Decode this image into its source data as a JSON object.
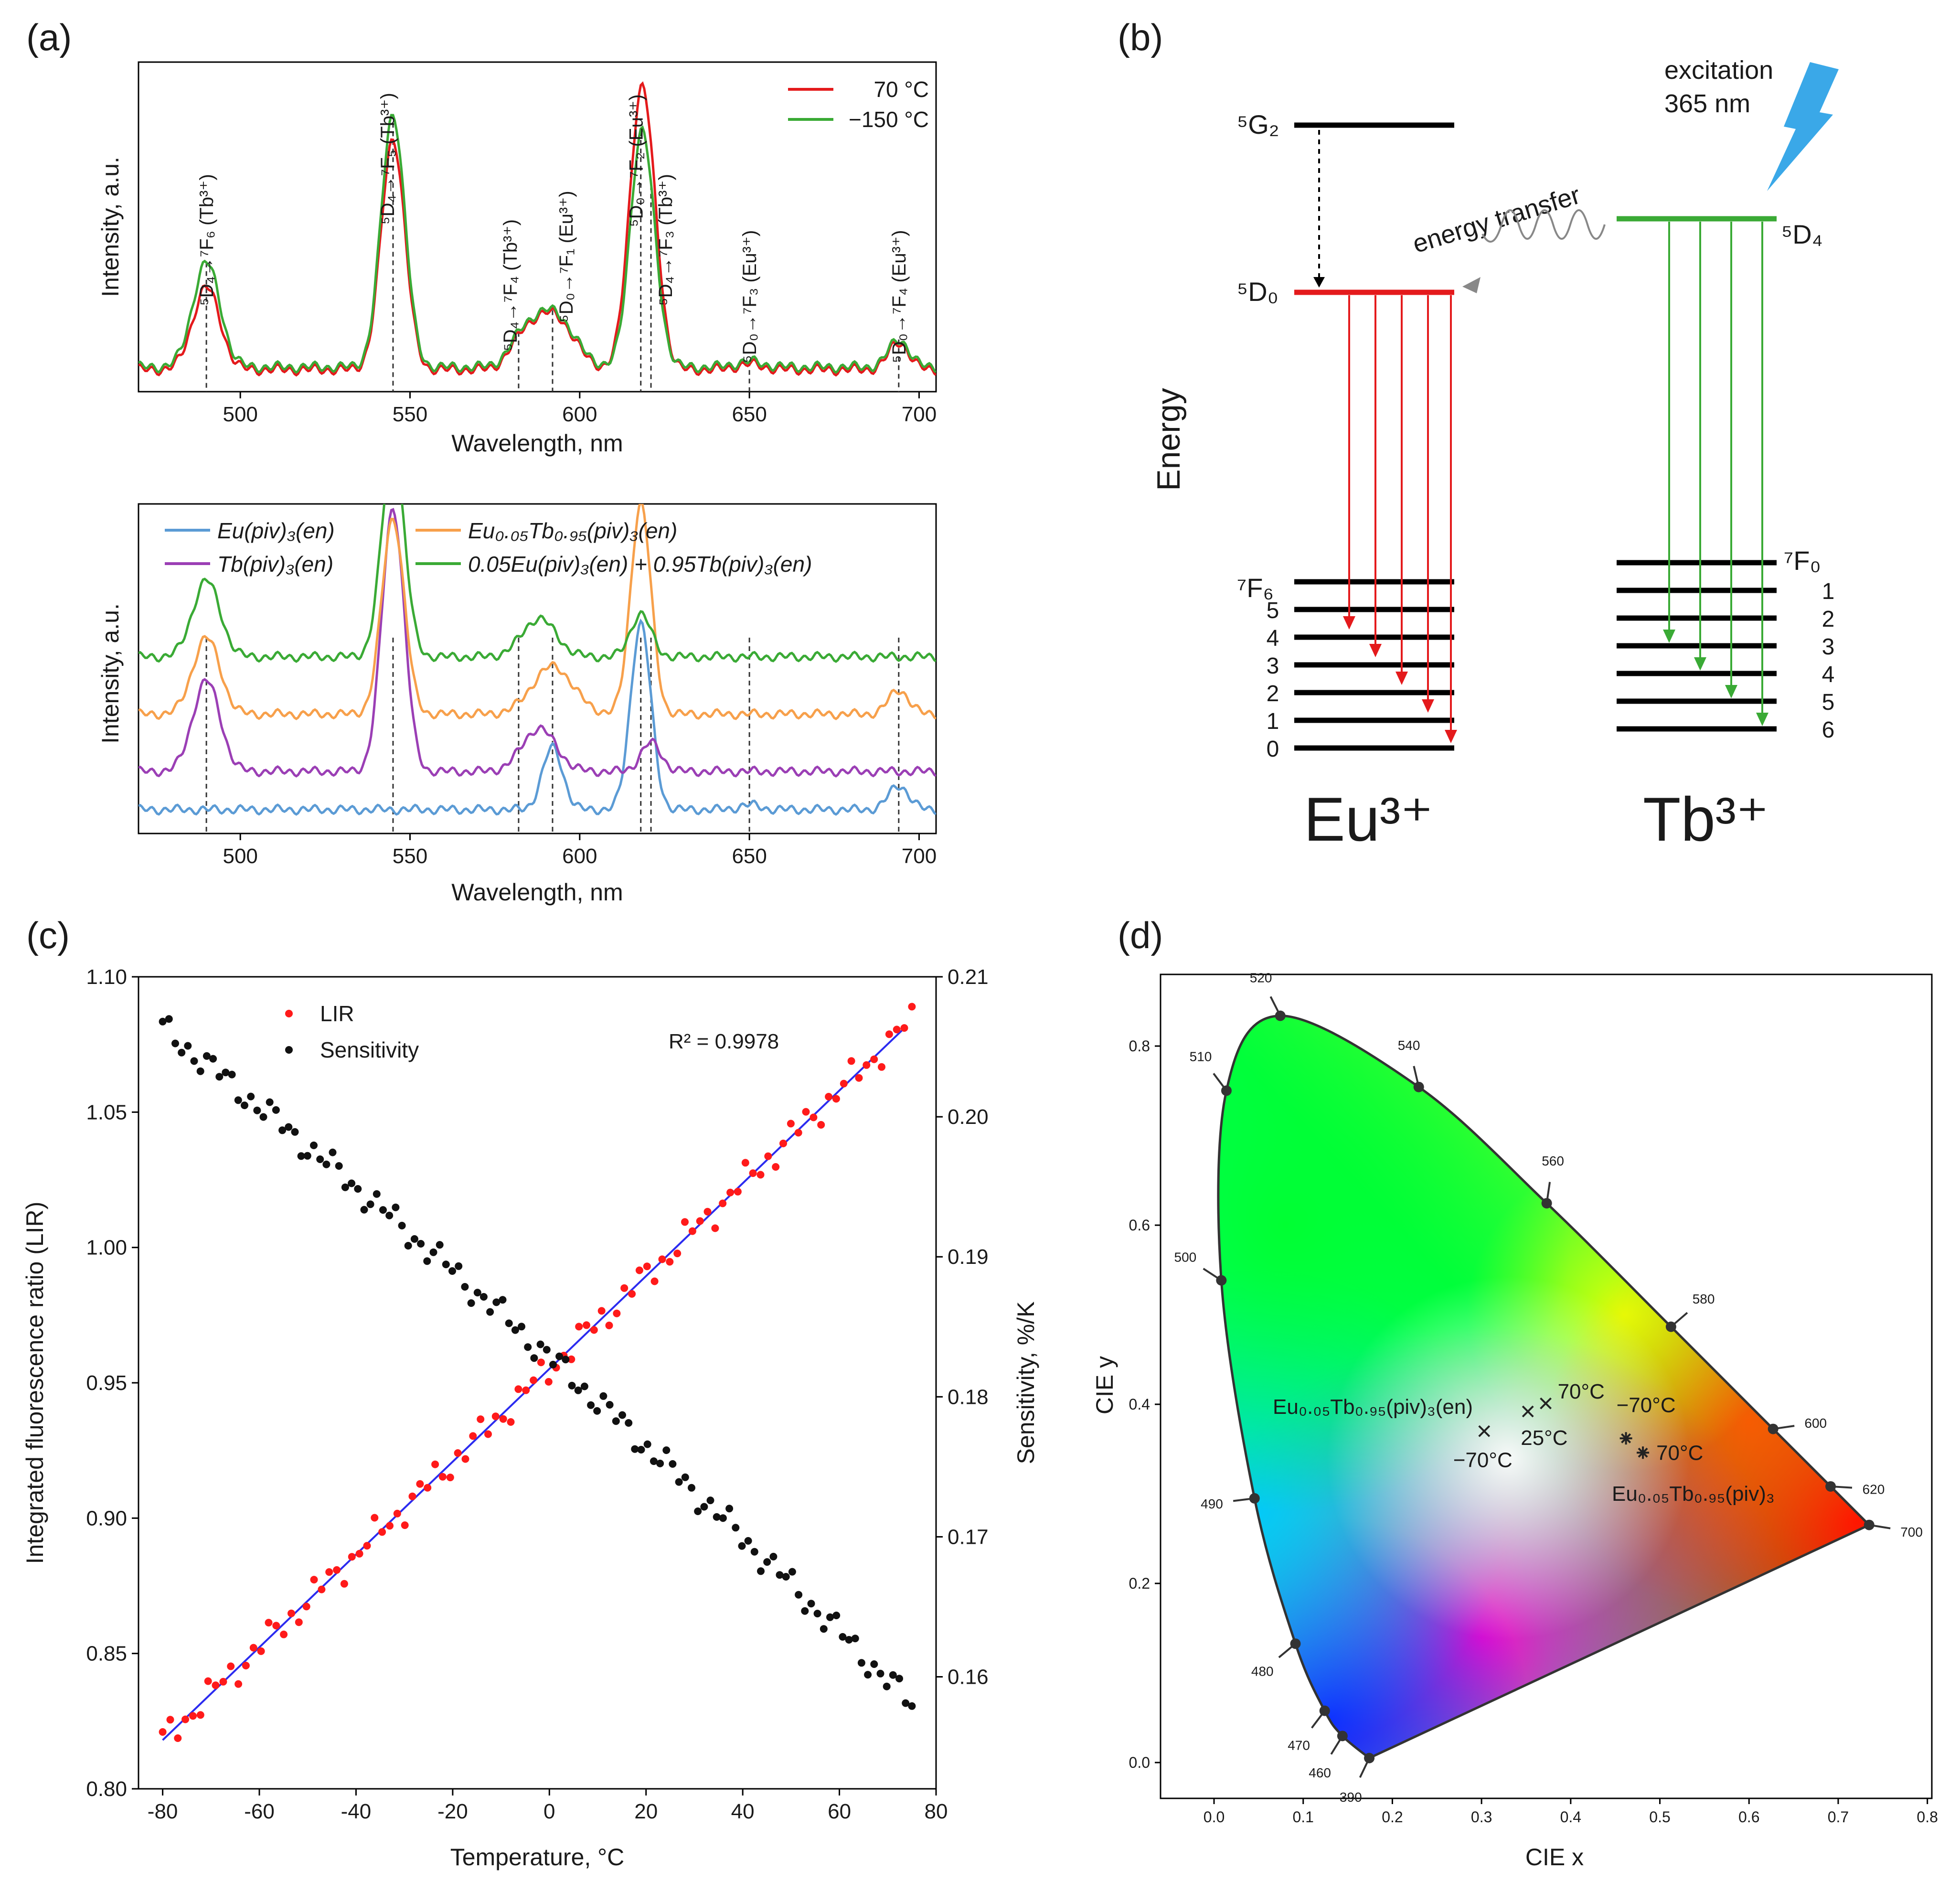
{
  "colors": {
    "red": "#e41a1c",
    "green": "#3aaa35",
    "blue": "#5b9bd5",
    "orange": "#f7a04b",
    "purple": "#9b3fb5",
    "lir_red": "#ff1a1a",
    "fit_blue": "#2b2bf0",
    "black": "#111111",
    "lightning": "#3aa8e8"
  },
  "panels": {
    "a_label": "(a)",
    "b_label": "(b)",
    "c_label": "(c)",
    "d_label": "(d)"
  },
  "chart_data": [
    {
      "id": "a-top",
      "type": "line",
      "xlabel": "Wavelength, nm",
      "ylabel": "Intensity, a.u.",
      "xlim": [
        470,
        705
      ],
      "ylim": [
        0,
        1.0
      ],
      "xticks": [
        500,
        550,
        600,
        650,
        700
      ],
      "legend": {
        "position": "top-right",
        "entries": [
          "70 °C",
          "−150 °C"
        ]
      },
      "series": [
        {
          "name": "70 °C",
          "color_key": "red",
          "peaks": [
            {
              "x": 490,
              "h": 0.15,
              "w": 4.0
            },
            {
              "x": 545,
              "h": 0.42,
              "w": 3.5
            },
            {
              "x": 583,
              "h": 0.04,
              "w": 4
            },
            {
              "x": 592,
              "h": 0.1,
              "w": 6
            },
            {
              "x": 618,
              "h": 0.48,
              "w": 3.5
            },
            {
              "x": 622,
              "h": 0.08,
              "w": 3
            },
            {
              "x": 650,
              "h": 0.01,
              "w": 4
            },
            {
              "x": 694,
              "h": 0.05,
              "w": 3
            }
          ],
          "baseline": 0.04
        },
        {
          "name": "−150 °C",
          "color_key": "green",
          "peaks": [
            {
              "x": 490,
              "h": 0.19,
              "w": 4.0
            },
            {
              "x": 545,
              "h": 0.46,
              "w": 3.5
            },
            {
              "x": 583,
              "h": 0.04,
              "w": 4
            },
            {
              "x": 592,
              "h": 0.1,
              "w": 6
            },
            {
              "x": 618,
              "h": 0.4,
              "w": 3.3
            },
            {
              "x": 622,
              "h": 0.07,
              "w": 3
            },
            {
              "x": 650,
              "h": 0.01,
              "w": 4
            },
            {
              "x": 694,
              "h": 0.05,
              "w": 3
            }
          ],
          "baseline": 0.045
        }
      ],
      "transitions": [
        {
          "x": 490,
          "label": "⁵D₄→⁷F₆ (Tb³⁺)"
        },
        {
          "x": 545,
          "label": "⁵D₄→⁷F₅ (Tb³⁺)"
        },
        {
          "x": 582,
          "label": "⁵D₄→⁷F₄ (Tb³⁺)"
        },
        {
          "x": 592,
          "label": "⁵D₀→⁷F₁ (Eu³⁺)"
        },
        {
          "x": 618,
          "label": "⁵D₀→⁷F₂ (Eu³⁺)"
        },
        {
          "x": 621,
          "label": "⁵D₄→⁷F₃ (Tb³⁺)"
        },
        {
          "x": 650,
          "label": "⁵D₀→⁷F₃ (Eu³⁺)"
        },
        {
          "x": 694,
          "label": "⁵D₀→⁷F₄ (Eu³⁺)"
        }
      ]
    },
    {
      "id": "a-bottom",
      "type": "line",
      "xlabel": "Wavelength, nm",
      "ylabel": "Intensity, a.u.",
      "xlim": [
        470,
        705
      ],
      "ylim": [
        0,
        1.0
      ],
      "xticks": [
        500,
        550,
        600,
        650,
        700
      ],
      "dashed_x": [
        490,
        545,
        582,
        592,
        618,
        621,
        650,
        694
      ],
      "legend_entries": [
        {
          "label": "Eu(piv)₃(en)",
          "color_key": "blue"
        },
        {
          "label": "Eu₀.₀₅Tb₀.₉₅(piv)₃(en)",
          "color_key": "orange"
        },
        {
          "label": "Tb(piv)₃(en)",
          "color_key": "purple"
        },
        {
          "label": "0.05Eu(piv)₃(en) + 0.95Tb(piv)₃(en)",
          "color_key": "green"
        }
      ],
      "series": [
        {
          "name": "Eu(piv)₃(en)",
          "color_key": "blue",
          "baseline": 0.05,
          "peaks": [
            {
              "x": 592,
              "h": 0.13,
              "w": 3
            },
            {
              "x": 618,
              "h": 0.39,
              "w": 3
            },
            {
              "x": 650,
              "h": 0.01,
              "w": 3
            },
            {
              "x": 694,
              "h": 0.05,
              "w": 3
            }
          ]
        },
        {
          "name": "Tb(piv)₃(en)",
          "color_key": "purple",
          "baseline": 0.13,
          "peaks": [
            {
              "x": 490,
              "h": 0.19,
              "w": 4
            },
            {
              "x": 545,
              "h": 0.55,
              "w": 3.3
            },
            {
              "x": 588,
              "h": 0.09,
              "w": 5
            },
            {
              "x": 621,
              "h": 0.06,
              "w": 3
            }
          ]
        },
        {
          "name": "Eu₀.₀₅Tb₀.₉₅(piv)₃(en)",
          "color_key": "orange",
          "baseline": 0.25,
          "peaks": [
            {
              "x": 490,
              "h": 0.16,
              "w": 4
            },
            {
              "x": 545,
              "h": 0.41,
              "w": 3.3
            },
            {
              "x": 592,
              "h": 0.1,
              "w": 6
            },
            {
              "x": 618,
              "h": 0.44,
              "w": 3
            },
            {
              "x": 694,
              "h": 0.05,
              "w": 3
            }
          ]
        },
        {
          "name": "0.05Eu(piv)₃(en) + 0.95Tb(piv)₃(en)",
          "color_key": "green",
          "baseline": 0.37,
          "peaks": [
            {
              "x": 490,
              "h": 0.16,
              "w": 4
            },
            {
              "x": 545,
              "h": 0.44,
              "w": 3.3
            },
            {
              "x": 588,
              "h": 0.08,
              "w": 5
            },
            {
              "x": 618,
              "h": 0.09,
              "w": 3
            }
          ]
        }
      ]
    },
    {
      "id": "c",
      "type": "scatter",
      "xlabel": "Temperature, °C",
      "ylabel_left": "Integrated fluorescence ratio (LIR)",
      "ylabel_right": "Sensitivity, %/K",
      "xlim": [
        -85,
        80
      ],
      "ylim_left": [
        0.8,
        1.1
      ],
      "ylim_right": [
        0.152,
        0.21
      ],
      "xticks": [
        -80,
        -60,
        -40,
        -20,
        0,
        20,
        40,
        60,
        80
      ],
      "yticks_left": [
        "0.80",
        "0.85",
        "0.90",
        "0.95",
        "1.00",
        "1.05",
        "1.10"
      ],
      "yticks_right": [
        "0.16",
        "0.17",
        "0.18",
        "0.19",
        "0.20",
        "0.21"
      ],
      "legend": [
        "LIR",
        "Sensitivity"
      ],
      "annotation": "R² = 0.9978",
      "lir_fit": {
        "x0": -80,
        "y0": 0.818,
        "x1": 74,
        "y1": 1.082
      },
      "lir_range": {
        "t_start": -80,
        "t_end": 75,
        "n": 100
      },
      "sens_range": {
        "t_start": -80,
        "t_end": 75,
        "n": 120,
        "y_start": 0.2063,
        "y_end": 0.158
      }
    },
    {
      "id": "d",
      "type": "scatter",
      "xlabel": "CIE x",
      "ylabel": "CIE y",
      "xlim": [
        -0.06,
        0.805
      ],
      "ylim": [
        -0.04,
        0.88
      ],
      "xticks": [
        "0.0",
        "0.1",
        "0.2",
        "0.3",
        "0.4",
        "0.5",
        "0.6",
        "0.7",
        "0.8"
      ],
      "yticks": [
        "0.0",
        "0.2",
        "0.4",
        "0.6",
        "0.8"
      ],
      "locus": [
        {
          "nm": "390",
          "x": 0.1741,
          "y": 0.005
        },
        {
          "nm": "460",
          "x": 0.144,
          "y": 0.0297
        },
        {
          "nm": "470",
          "x": 0.1241,
          "y": 0.0578
        },
        {
          "nm": "480",
          "x": 0.0913,
          "y": 0.1327
        },
        {
          "nm": "490",
          "x": 0.0454,
          "y": 0.295
        },
        {
          "nm": "500",
          "x": 0.0082,
          "y": 0.5384
        },
        {
          "nm": "510",
          "x": 0.0139,
          "y": 0.7502
        },
        {
          "nm": "520",
          "x": 0.0743,
          "y": 0.8338
        },
        {
          "nm": "540",
          "x": 0.2296,
          "y": 0.7543
        },
        {
          "nm": "560",
          "x": 0.3731,
          "y": 0.6245
        },
        {
          "nm": "580",
          "x": 0.5125,
          "y": 0.4866
        },
        {
          "nm": "600",
          "x": 0.627,
          "y": 0.3725
        },
        {
          "nm": "620",
          "x": 0.6915,
          "y": 0.3083
        },
        {
          "nm": "700",
          "x": 0.7347,
          "y": 0.2653
        }
      ],
      "points_en": [
        {
          "label": "−70°C",
          "x": 0.303,
          "y": 0.37
        },
        {
          "label": "25°C",
          "x": 0.352,
          "y": 0.392
        },
        {
          "label": "70°C",
          "x": 0.372,
          "y": 0.401
        }
      ],
      "points_solid": [
        {
          "label": "−70°C",
          "x": 0.462,
          "y": 0.362
        },
        {
          "label": "70°C",
          "x": 0.481,
          "y": 0.346
        }
      ],
      "label_en": "Eu₀.₀₅Tb₀.₉₅(piv)₃(en)",
      "label_solid": "Eu₀.₀₅Tb₀.₉₅(piv)₃"
    }
  ],
  "diagram_b": {
    "energy_label": "Energy",
    "excitation_label_1": "excitation",
    "excitation_label_2": "365 nm",
    "energy_transfer_label": "energy transfer",
    "eu_label": "Eu³⁺",
    "tb_label": "Tb³⁺",
    "level_5G2": "⁵G₂",
    "level_5D0": "⁵D₀",
    "level_5D4": "⁵D₄",
    "eu_7F_top": "⁷F₆",
    "eu_7F_numbers": [
      "5",
      "4",
      "3",
      "2",
      "1",
      "0"
    ],
    "tb_7F_top": "⁷F₀",
    "tb_7F_numbers": [
      "1",
      "2",
      "3",
      "4",
      "5",
      "6"
    ]
  }
}
